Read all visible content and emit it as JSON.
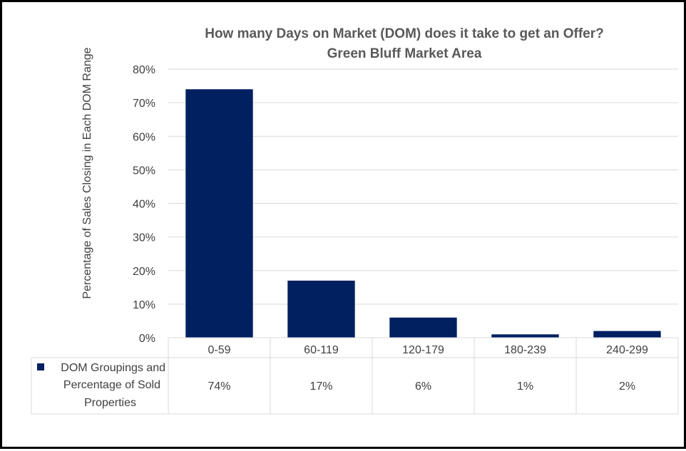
{
  "chart_data": {
    "type": "bar",
    "title": "How many Days on Market (DOM) does it take to get an Offer?",
    "subtitle": "Green Bluff Market Area",
    "ylabel": "Percentage of Sales Closing in Each DOM Range",
    "xlabel": "",
    "ylim": [
      0,
      80
    ],
    "yticks": [
      "0%",
      "10%",
      "20%",
      "30%",
      "40%",
      "50%",
      "60%",
      "70%",
      "80%"
    ],
    "grid": true,
    "categories": [
      "0-59",
      "60-119",
      "120-179",
      "180-239",
      "240-299"
    ],
    "series": [
      {
        "name": "DOM Groupings and Percentage of Sold Properties",
        "values": [
          74,
          17,
          6,
          1,
          2
        ],
        "labels": [
          "74%",
          "17%",
          "6%",
          "1%",
          "2%"
        ],
        "color": "#002060"
      }
    ],
    "legend": "data-table",
    "data_table": true
  }
}
